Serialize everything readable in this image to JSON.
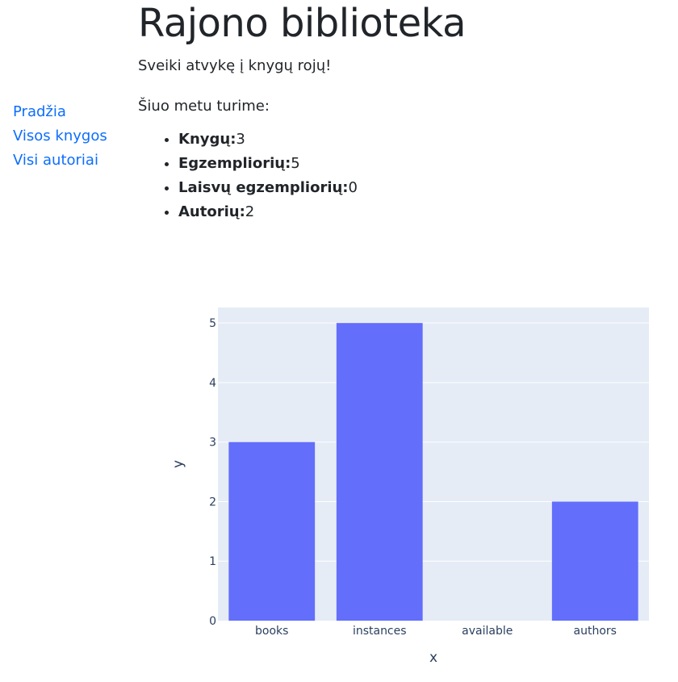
{
  "sidebar": {
    "items": [
      {
        "label": "Pradžia"
      },
      {
        "label": "Visos knygos"
      },
      {
        "label": "Visi autoriai"
      }
    ]
  },
  "main": {
    "title": "Rajono biblioteka",
    "welcome": "Sveiki atvykę į knygų rojų!",
    "intro": "Šiuo metu turime:",
    "stats": [
      {
        "label": "Knygų:",
        "value": "3"
      },
      {
        "label": "Egzempliorių:",
        "value": "5"
      },
      {
        "label": "Laisvų egzempliorių:",
        "value": "0"
      },
      {
        "label": "Autorių:",
        "value": "2"
      }
    ]
  },
  "colors": {
    "link": "#0d6efd",
    "bar": "#636efa",
    "plot_bg": "#e5ecf6",
    "grid": "#ffffff"
  },
  "chart_data": {
    "type": "bar",
    "categories": [
      "books",
      "instances",
      "available",
      "authors"
    ],
    "values": [
      3,
      5,
      0,
      2
    ],
    "xlabel": "x",
    "ylabel": "y",
    "ylim": [
      0,
      5.26
    ],
    "yticks": [
      0,
      1,
      2,
      3,
      4,
      5
    ],
    "grid": true
  }
}
